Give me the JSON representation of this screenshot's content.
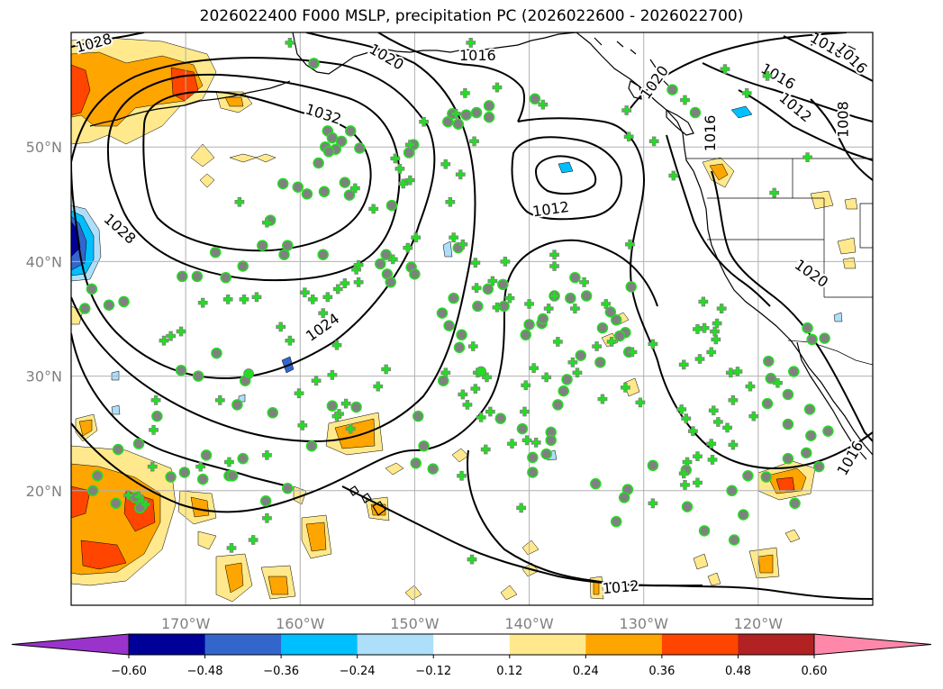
{
  "title": "2026022400 F000 MSLP, precipitation PC (2026022600 - 2026022700)",
  "map": {
    "lon_min": -180,
    "lon_max": -110,
    "lat_min": 10,
    "lat_max": 60,
    "lon_ticks": [
      {
        "lon": -170,
        "label": "170°W"
      },
      {
        "lon": -160,
        "label": "160°W"
      },
      {
        "lon": -150,
        "label": "150°W"
      },
      {
        "lon": -140,
        "label": "140°W"
      },
      {
        "lon": -130,
        "label": "130°W"
      },
      {
        "lon": -120,
        "label": "120°W"
      }
    ],
    "lat_ticks": [
      {
        "lat": 50,
        "label": "50°N"
      },
      {
        "lat": 40,
        "label": "40°N"
      },
      {
        "lat": 30,
        "label": "30°N"
      },
      {
        "lat": 20,
        "label": "20°N"
      }
    ]
  },
  "isobar_labels": [
    {
      "text": "1028",
      "lon": -178,
      "lat": 59,
      "rot": -15
    },
    {
      "text": "1020",
      "lon": -152.5,
      "lat": 57.8,
      "rot": 30
    },
    {
      "text": "1016",
      "lon": -144.5,
      "lat": 57.9,
      "rot": 0
    },
    {
      "text": "1032",
      "lon": -158,
      "lat": 52.8,
      "rot": 18
    },
    {
      "text": "1028",
      "lon": -175.8,
      "lat": 42.8,
      "rot": 42
    },
    {
      "text": "1012",
      "lon": -138.1,
      "lat": 44.5,
      "rot": -8
    },
    {
      "text": "1024",
      "lon": -158,
      "lat": 34.2,
      "rot": -35
    },
    {
      "text": "1020",
      "lon": -129,
      "lat": 55.6,
      "rot": -55
    },
    {
      "text": "1016",
      "lon": -124.1,
      "lat": 51.2,
      "rot": -90
    },
    {
      "text": "1016",
      "lon": -114,
      "lat": 58.8,
      "rot": 30
    },
    {
      "text": "1016",
      "lon": -111.9,
      "lat": 57.7,
      "rot": 45
    },
    {
      "text": "1016",
      "lon": -118.3,
      "lat": 56.1,
      "rot": 30
    },
    {
      "text": "1012",
      "lon": -116.8,
      "lat": 53.4,
      "rot": 40
    },
    {
      "text": "1008",
      "lon": -112.5,
      "lat": 52.4,
      "rot": -90
    },
    {
      "text": "1020",
      "lon": -115.4,
      "lat": 38.9,
      "rot": 35
    },
    {
      "text": "1012",
      "lon": -132,
      "lat": 11.5,
      "rot": -5
    },
    {
      "text": "1016",
      "lon": -111.9,
      "lat": 22.8,
      "rot": -60
    }
  ],
  "colorbar": {
    "colors": [
      "#9933CC",
      "#000099",
      "#3366CC",
      "#00BFFF",
      "#ADDFFA",
      "#FFFFFF",
      "#FFE98C",
      "#FFA500",
      "#FF4500",
      "#B22222",
      "#FF88AA"
    ],
    "tick_labels": [
      "−0.60",
      "−0.48",
      "−0.36",
      "−0.24",
      "−0.12",
      "0.12",
      "0.24",
      "0.36",
      "0.48",
      "0.60"
    ]
  },
  "precip_colors": {
    "yellow": "#FFE98C",
    "orange": "#FFA500",
    "red": "#FF4500",
    "light_blue": "#ADDFFA",
    "cyan": "#00BFFF",
    "blue": "#3366CC",
    "navy": "#000099"
  },
  "station_colors": {
    "cross": "#22DD22",
    "circle_fill": "#808080",
    "circle_ring": "#22DD22"
  },
  "stations_cross": [
    [
      -160.9,
      59.1
    ],
    [
      -145.1,
      59.1
    ],
    [
      -142.8,
      55.2
    ],
    [
      -138.8,
      53.7
    ],
    [
      -145.6,
      54.7
    ],
    [
      -146.4,
      52.9
    ],
    [
      -149.2,
      52.2
    ],
    [
      -150.4,
      50.2
    ],
    [
      -151.7,
      49.0
    ],
    [
      -155.2,
      46.4
    ],
    [
      -151.0,
      46.8
    ],
    [
      -146.0,
      47.6
    ],
    [
      -147.3,
      48.5
    ],
    [
      -150.4,
      47.1
    ],
    [
      -144.8,
      50.5
    ],
    [
      -151.3,
      48.1
    ],
    [
      -153.6,
      44.6
    ],
    [
      -151.9,
      40.2
    ],
    [
      -154.9,
      38.2
    ],
    [
      -150.6,
      41.2
    ],
    [
      -149.9,
      42.1
    ],
    [
      -146.9,
      45.2
    ],
    [
      -146.6,
      42.1
    ],
    [
      -145.8,
      41.5
    ],
    [
      -142.1,
      40.0
    ],
    [
      -144.7,
      39.9
    ],
    [
      -144.6,
      37.7
    ],
    [
      -143.2,
      38.3
    ],
    [
      -141.7,
      36.8
    ],
    [
      -142.8,
      36.0
    ],
    [
      -140.0,
      36.3
    ],
    [
      -138.3,
      35.9
    ],
    [
      -137.5,
      33.0
    ],
    [
      -136.2,
      31.2
    ],
    [
      -135.8,
      30.3
    ],
    [
      -138.5,
      29.9
    ],
    [
      -139.6,
      30.7
    ],
    [
      -140.3,
      29.2
    ],
    [
      -144.5,
      30.3
    ],
    [
      -143.7,
      29.9
    ],
    [
      -145.8,
      28.4
    ],
    [
      -144.7,
      28.9
    ],
    [
      -144.2,
      26.4
    ],
    [
      -145.4,
      27.5
    ],
    [
      -143.8,
      23.6
    ],
    [
      -145.9,
      21.3
    ],
    [
      -140.2,
      24.4
    ],
    [
      -139.4,
      24.2
    ],
    [
      -140.7,
      18.5
    ],
    [
      -137.8,
      40.6
    ],
    [
      -137.8,
      39.6
    ],
    [
      -137.8,
      37.0
    ],
    [
      -135.2,
      38.2
    ],
    [
      -136.0,
      35.9
    ],
    [
      -133.3,
      36.3
    ],
    [
      -132.8,
      33.0
    ],
    [
      -131.0,
      32.1
    ],
    [
      -134.1,
      32.6
    ],
    [
      -130.3,
      27.7
    ],
    [
      -131.6,
      29.0
    ],
    [
      -133.6,
      28.0
    ],
    [
      -129.2,
      18.9
    ],
    [
      -123.9,
      27.0
    ],
    [
      -122.2,
      27.9
    ],
    [
      -120.7,
      29.1
    ],
    [
      -123.5,
      26.0
    ],
    [
      -125.7,
      25.2
    ],
    [
      -124.1,
      24.1
    ],
    [
      -125.3,
      20.7
    ],
    [
      -124.0,
      22.7
    ],
    [
      -122.2,
      24.0
    ],
    [
      -125.3,
      23.0
    ],
    [
      -126.5,
      21.5
    ],
    [
      -126.2,
      22.5
    ],
    [
      -126.4,
      20.5
    ],
    [
      -123.7,
      33.2
    ],
    [
      -123.8,
      33.9
    ],
    [
      -124.1,
      32.1
    ],
    [
      -125.1,
      31.5
    ],
    [
      -123.2,
      35.9
    ],
    [
      -123.6,
      34.6
    ],
    [
      -124.7,
      34.2
    ],
    [
      -124.8,
      36.5
    ],
    [
      -126.7,
      27.1
    ],
    [
      -126.3,
      26.3
    ],
    [
      -129.2,
      32.8
    ],
    [
      -126.5,
      31.0
    ],
    [
      -125.3,
      34.1
    ],
    [
      -122.7,
      25.5
    ],
    [
      -118.3,
      29.4
    ],
    [
      -122.4,
      30.3
    ],
    [
      -141.5,
      24.1
    ],
    [
      -144.9,
      32.6
    ],
    [
      -140.4,
      26.9
    ],
    [
      -143.4,
      26.9
    ],
    [
      -147.3,
      30.3
    ],
    [
      -155.6,
      25.4
    ],
    [
      -156.6,
      26.7
    ],
    [
      -152.5,
      30.6
    ],
    [
      -156.0,
      27.6
    ],
    [
      -158.6,
      29.6
    ],
    [
      -156.8,
      32.7
    ],
    [
      -158.9,
      36.7
    ],
    [
      -156.7,
      37.6
    ],
    [
      -156.1,
      38.1
    ],
    [
      -155.1,
      39.3
    ],
    [
      -154.9,
      39.7
    ],
    [
      -159.6,
      37.3
    ],
    [
      -163.8,
      36.9
    ],
    [
      -164.9,
      36.7
    ],
    [
      -166.3,
      36.7
    ],
    [
      -168.5,
      36.4
    ],
    [
      -170.4,
      33.9
    ],
    [
      -171.3,
      33.5
    ],
    [
      -171.9,
      33.1
    ],
    [
      -167.0,
      27.9
    ],
    [
      -159.8,
      25.7
    ],
    [
      -162.9,
      23.1
    ],
    [
      -166.2,
      22.5
    ],
    [
      -168.7,
      22.1
    ],
    [
      -172.6,
      27.9
    ],
    [
      -172.9,
      22.1
    ],
    [
      -174.1,
      19.5
    ],
    [
      -173.8,
      19.1
    ],
    [
      -173.5,
      18.8
    ],
    [
      -175.0,
      19.6
    ],
    [
      -172.8,
      25.3
    ],
    [
      -162.9,
      17.6
    ],
    [
      -164.1,
      15.7
    ],
    [
      -166.0,
      15.0
    ],
    [
      -145.0,
      14.0
    ],
    [
      -153.2,
      29.1
    ],
    [
      -157.2,
      30.1
    ],
    [
      -160.1,
      28.5
    ],
    [
      -156.8,
      26.5
    ],
    [
      -160.9,
      33.1
    ],
    [
      -161.7,
      34.3
    ],
    [
      -158.0,
      35.5
    ],
    [
      -165.3,
      45.2
    ],
    [
      -162.9,
      43.4
    ],
    [
      -157.6,
      36.9
    ],
    [
      -120.4,
      26.5
    ],
    [
      -121.8,
      30.4
    ],
    [
      -127.4,
      47.5
    ],
    [
      -131.2,
      41.5
    ],
    [
      -131.3,
      50.9
    ],
    [
      -129.1,
      50.5
    ],
    [
      -118.6,
      46.0
    ],
    [
      -115.7,
      49.1
    ],
    [
      -126.4,
      54.1
    ],
    [
      -122.9,
      56.8
    ],
    [
      -121.0,
      54.7
    ],
    [
      -119.2,
      56.2
    ],
    [
      -131.5,
      53.2
    ]
  ],
  "stations_circle": [
    [
      -158.8,
      57.3
    ],
    [
      -157.6,
      51.4
    ],
    [
      -155.6,
      51.4
    ],
    [
      -156.4,
      50.5
    ],
    [
      -157.2,
      50.8
    ],
    [
      -157.8,
      50.0
    ],
    [
      -156.9,
      49.8
    ],
    [
      -157.5,
      49.6
    ],
    [
      -154.8,
      49.9
    ],
    [
      -158.4,
      48.6
    ],
    [
      -157.9,
      46.1
    ],
    [
      -159.4,
      45.9
    ],
    [
      -147.1,
      52.2
    ],
    [
      -146.2,
      52.0
    ],
    [
      -145.5,
      52.8
    ],
    [
      -146.7,
      52.9
    ],
    [
      -144.6,
      53.0
    ],
    [
      -143.5,
      53.6
    ],
    [
      -143.5,
      52.6
    ],
    [
      -139.5,
      54.2
    ],
    [
      -150.1,
      50.2
    ],
    [
      -150.5,
      49.5
    ],
    [
      -152.0,
      44.9
    ],
    [
      -152.5,
      40.6
    ],
    [
      -153.0,
      39.8
    ],
    [
      -152.4,
      38.9
    ],
    [
      -152.1,
      38.2
    ],
    [
      -150.3,
      39.5
    ],
    [
      -150.0,
      38.9
    ],
    [
      -146.2,
      41.2
    ],
    [
      -143.6,
      37.6
    ],
    [
      -142.3,
      38.0
    ],
    [
      -142.2,
      36.1
    ],
    [
      -144.5,
      36.1
    ],
    [
      -140.3,
      33.6
    ],
    [
      -138.9,
      34.6
    ],
    [
      -137.8,
      37.0
    ],
    [
      -136.0,
      38.6
    ],
    [
      -135.0,
      37.0
    ],
    [
      -136.4,
      36.8
    ],
    [
      -138.8,
      35.0
    ],
    [
      -140.0,
      34.5
    ],
    [
      -131.6,
      33.8
    ],
    [
      -132.1,
      33.5
    ],
    [
      -131.3,
      32.1
    ],
    [
      -133.8,
      31.2
    ],
    [
      -135.5,
      31.8
    ],
    [
      -136.7,
      29.7
    ],
    [
      -137.0,
      28.7
    ],
    [
      -137.5,
      27.5
    ],
    [
      -138.1,
      25.1
    ],
    [
      -138.5,
      23.2
    ],
    [
      -139.7,
      22.9
    ],
    [
      -139.7,
      21.6
    ],
    [
      -134.2,
      20.6
    ],
    [
      -131.4,
      20.1
    ],
    [
      -131.7,
      19.4
    ],
    [
      -132.4,
      17.3
    ],
    [
      -126.2,
      18.6
    ],
    [
      -121.3,
      17.9
    ],
    [
      -122.1,
      15.7
    ],
    [
      -124.7,
      16.5
    ],
    [
      -122.3,
      20.0
    ],
    [
      -126.3,
      21.8
    ],
    [
      -129.2,
      22.2
    ],
    [
      -120.9,
      21.3
    ],
    [
      -119.3,
      21.2
    ],
    [
      -116.8,
      18.9
    ],
    [
      -117.4,
      22.8
    ],
    [
      -114.7,
      22.1
    ],
    [
      -115.8,
      23.3
    ],
    [
      -115.4,
      24.8
    ],
    [
      -117.4,
      25.8
    ],
    [
      -113.9,
      25.2
    ],
    [
      -115.5,
      27.1
    ],
    [
      -117.4,
      28.4
    ],
    [
      -119.2,
      27.6
    ],
    [
      -116.9,
      30.4
    ],
    [
      -118.9,
      29.8
    ],
    [
      -119.1,
      31.3
    ],
    [
      -115.3,
      33.2
    ],
    [
      -115.7,
      34.2
    ],
    [
      -114.2,
      33.3
    ],
    [
      -147.5,
      29.6
    ],
    [
      -149.7,
      26.5
    ],
    [
      -149.2,
      23.9
    ],
    [
      -149.9,
      22.4
    ],
    [
      -148.4,
      21.9
    ],
    [
      -142.5,
      26.3
    ],
    [
      -140.6,
      25.4
    ],
    [
      -138.1,
      24.4
    ],
    [
      -155.1,
      27.3
    ],
    [
      -157.2,
      27.4
    ],
    [
      -159.0,
      23.9
    ],
    [
      -161.1,
      20.2
    ],
    [
      -165.0,
      22.8
    ],
    [
      -166.2,
      21.3
    ],
    [
      -168.5,
      21.0
    ],
    [
      -170.1,
      21.6
    ],
    [
      -171.3,
      21.2
    ],
    [
      -172.5,
      26.5
    ],
    [
      -170.4,
      30.5
    ],
    [
      -168.9,
      30.0
    ],
    [
      -167.3,
      32.0
    ],
    [
      -164.8,
      29.6
    ],
    [
      -165.5,
      27.5
    ],
    [
      -162.4,
      26.8
    ],
    [
      -165.9,
      21.3
    ],
    [
      -163.0,
      19.1
    ],
    [
      -174.4,
      19.4
    ],
    [
      -174.0,
      18.5
    ],
    [
      -176.1,
      18.9
    ],
    [
      -177.7,
      21.3
    ],
    [
      -178.1,
      20.0
    ],
    [
      -168.2,
      23.1
    ],
    [
      -174.1,
      24.1
    ],
    [
      -175.9,
      23.6
    ],
    [
      -166.5,
      38.6
    ],
    [
      -165.0,
      39.6
    ],
    [
      -161.1,
      41.4
    ],
    [
      -163.3,
      41.4
    ],
    [
      -162.6,
      43.6
    ],
    [
      -167.4,
      40.8
    ],
    [
      -169.0,
      38.7
    ],
    [
      -170.3,
      38.7
    ],
    [
      -175.4,
      36.5
    ],
    [
      -176.7,
      36.2
    ],
    [
      -178.2,
      37.6
    ],
    [
      -178.8,
      35.9
    ],
    [
      -161.4,
      40.6
    ],
    [
      -158.0,
      40.6
    ],
    [
      -161.5,
      46.8
    ],
    [
      -160.2,
      46.5
    ],
    [
      -156.1,
      46.9
    ],
    [
      -155.7,
      45.8
    ],
    [
      -146.6,
      36.8
    ],
    [
      -147.6,
      35.5
    ],
    [
      -147.0,
      34.4
    ],
    [
      -145.9,
      33.6
    ],
    [
      -146.1,
      32.5
    ],
    [
      -131.1,
      37.8
    ],
    [
      -132.9,
      35.6
    ],
    [
      -132.4,
      34.9
    ],
    [
      -133.6,
      34.2
    ],
    [
      -127.5,
      55.0
    ],
    [
      -125.5,
      53.0
    ]
  ],
  "stations_green": [
    [
      -164.5,
      30.2
    ],
    [
      -144.2,
      30.4
    ]
  ]
}
